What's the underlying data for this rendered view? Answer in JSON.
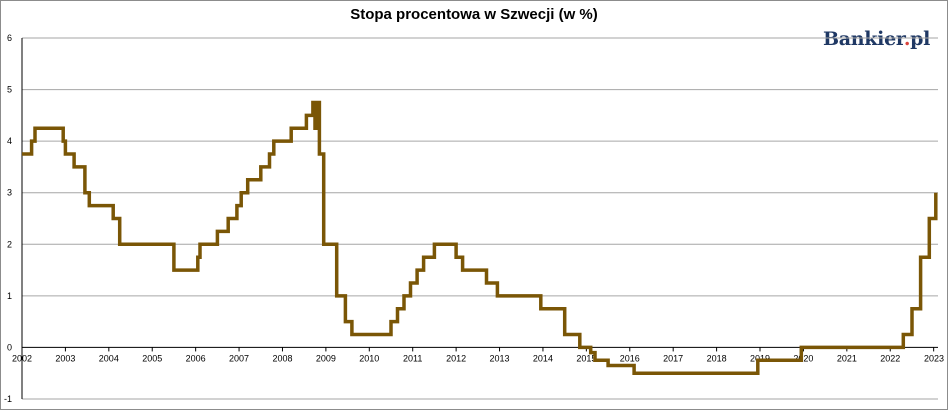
{
  "title": "Stopa procentowa w Szwecji (w %)",
  "logo": {
    "name": "Bankier",
    "dot": ".",
    "tld": "pl",
    "dot_color": "#d9433b",
    "text_color": "#1f3864"
  },
  "chart_data": {
    "type": "line",
    "title": "Stopa procentowa w Szwecji (w %)",
    "xlabel": "",
    "ylabel": "",
    "xlim": [
      2002.0,
      2023.1
    ],
    "ylim": [
      -1,
      6
    ],
    "y_ticks": [
      -1,
      0,
      1,
      2,
      3,
      4,
      5,
      6
    ],
    "x_ticks": [
      "2002",
      "2003",
      "2004",
      "2005",
      "2006",
      "2007",
      "2008",
      "2009",
      "2010",
      "2011",
      "2012",
      "2013",
      "2014",
      "2015",
      "2016",
      "2017",
      "2018",
      "2019",
      "2020",
      "2021",
      "2022",
      "2023"
    ],
    "grid": true,
    "legend": "none",
    "line_color": "#7a5606",
    "series": [
      {
        "step": true,
        "x": [
          2002.0,
          2002.22,
          2002.3,
          2002.95,
          2003.0,
          2003.2,
          2003.45,
          2003.55,
          2004.1,
          2004.25,
          2005.5,
          2006.05,
          2006.1,
          2006.5,
          2006.75,
          2006.95,
          2007.05,
          2007.2,
          2007.5,
          2007.7,
          2007.8,
          2008.2,
          2008.55,
          2008.7,
          2008.75,
          2008.8,
          2008.85,
          2008.95,
          2009.25,
          2009.45,
          2009.6,
          2010.5,
          2010.65,
          2010.8,
          2010.95,
          2011.1,
          2011.25,
          2011.5,
          2012.0,
          2012.15,
          2012.7,
          2012.95,
          2013.95,
          2014.5,
          2014.85,
          2015.1,
          2015.2,
          2015.5,
          2016.1,
          2018.95,
          2019.95,
          2022.3,
          2022.5,
          2022.7,
          2022.9,
          2023.05
        ],
        "y": [
          3.75,
          4.0,
          4.25,
          4.0,
          3.75,
          3.5,
          3.0,
          2.75,
          2.5,
          2.0,
          1.5,
          1.75,
          2.0,
          2.25,
          2.5,
          2.75,
          3.0,
          3.25,
          3.5,
          3.75,
          4.0,
          4.25,
          4.5,
          4.75,
          4.25,
          4.75,
          3.75,
          2.0,
          1.0,
          0.5,
          0.25,
          0.5,
          0.75,
          1.0,
          1.25,
          1.5,
          1.75,
          2.0,
          1.75,
          1.5,
          1.25,
          1.0,
          0.75,
          0.25,
          0.0,
          -0.1,
          -0.25,
          -0.35,
          -0.5,
          -0.25,
          0.0,
          0.25,
          0.75,
          1.75,
          2.5,
          3.0
        ]
      }
    ]
  }
}
